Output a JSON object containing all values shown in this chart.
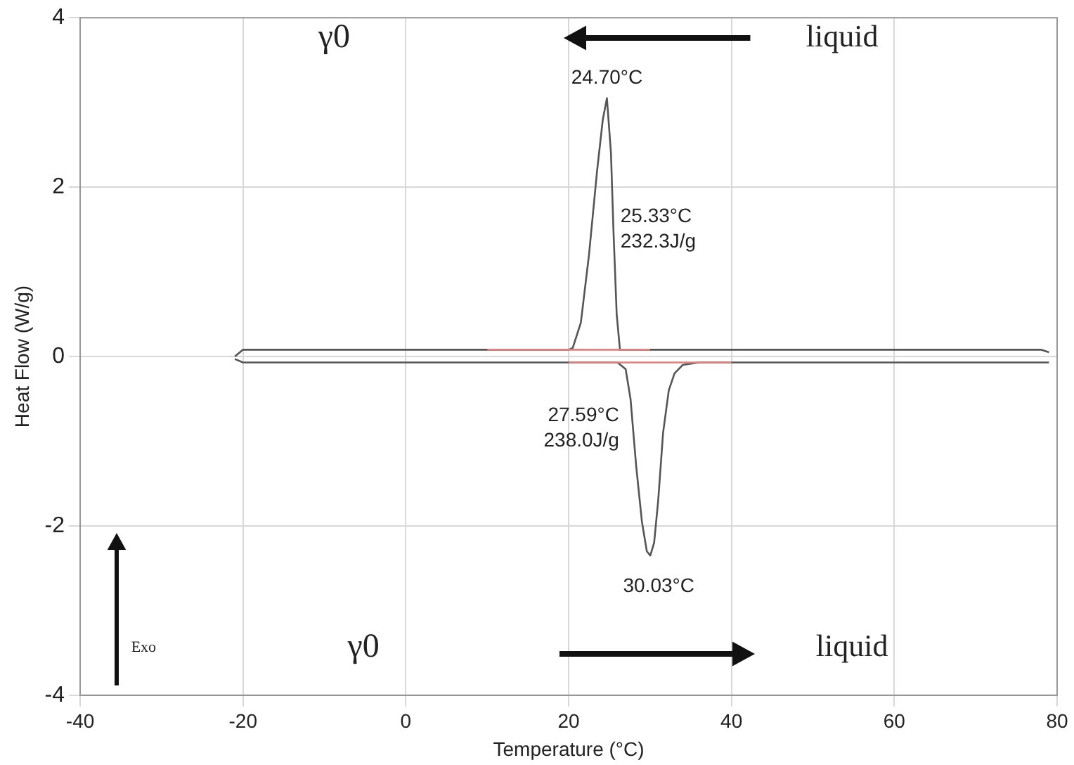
{
  "chart_data": {
    "type": "line",
    "xlabel": "Temperature (°C)",
    "ylabel": "Heat Flow (W/g)",
    "xlim": [
      -40,
      80
    ],
    "xticks": [
      -40,
      -20,
      0,
      20,
      40,
      60,
      80
    ],
    "ylim": [
      -4,
      4
    ],
    "yticks": [
      -4,
      -2,
      0,
      2,
      4
    ],
    "grid": true,
    "legend": false,
    "marker": "none",
    "line_style": "solid",
    "series": [
      {
        "color": "#555555",
        "x": [
          -21,
          -20,
          0,
          20,
          20.5,
          21.5,
          22.5,
          23.5,
          24.2,
          24.7,
          25.2,
          25.5,
          25.9,
          26.3,
          40,
          60,
          78,
          79
        ],
        "values": [
          0.0,
          0.08,
          0.08,
          0.08,
          0.1,
          0.4,
          1.2,
          2.2,
          2.8,
          3.05,
          2.4,
          1.5,
          0.5,
          0.08,
          0.08,
          0.08,
          0.08,
          0.05
        ]
      },
      {
        "color": "#555555",
        "x": [
          -21,
          -20,
          0,
          20,
          26,
          27,
          27.6,
          28.3,
          29,
          29.6,
          30.03,
          30.5,
          31,
          31.6,
          32.3,
          33,
          34,
          36,
          60,
          79
        ],
        "values": [
          -0.03,
          -0.07,
          -0.07,
          -0.07,
          -0.07,
          -0.15,
          -0.5,
          -1.3,
          -1.95,
          -2.3,
          -2.35,
          -2.2,
          -1.7,
          -0.9,
          -0.4,
          -0.2,
          -0.1,
          -0.07,
          -0.07,
          -0.07
        ]
      },
      {
        "color": "#e08080",
        "x": [
          10,
          30
        ],
        "values": [
          0.08,
          0.08
        ]
      },
      {
        "color": "#e08080",
        "x": [
          20,
          40
        ],
        "values": [
          -0.07,
          -0.07
        ]
      }
    ],
    "annotations": [
      {
        "text": "24.70°C",
        "x": 24.7,
        "y": 3.05
      },
      {
        "text": "25.33°C\n232.3J/g",
        "x": 25.33,
        "y": 1.15
      },
      {
        "text": "27.59°C\n238.0J/g",
        "x": 27.59,
        "y": -0.07
      },
      {
        "text": "30.03°C",
        "x": 30.03,
        "y": -2.35
      },
      "γ0",
      "liquid",
      "γ0",
      "liquid",
      "Exo"
    ]
  }
}
